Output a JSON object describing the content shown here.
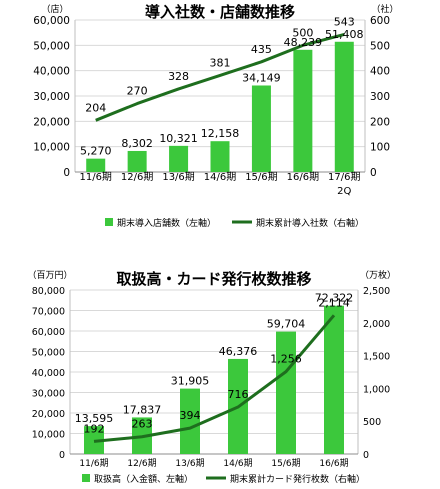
{
  "chart_data": [
    {
      "type": "bar",
      "title": "導入社数・店舗数推移",
      "y_left_unit": "（店）",
      "y_right_unit": "（社）",
      "categories": [
        "11/6期",
        "12/6期",
        "13/6期",
        "14/6期",
        "15/6期",
        "16/6期",
        "17/6期"
      ],
      "category_sublabels": [
        "",
        "",
        "",
        "",
        "",
        "",
        "2Q"
      ],
      "ylim_left": [
        0,
        60000
      ],
      "yticks_left": [
        "0",
        "10,000",
        "20,000",
        "30,000",
        "40,000",
        "50,000",
        "60,000"
      ],
      "ylim_right": [
        0,
        600
      ],
      "yticks_right": [
        "0",
        "100",
        "200",
        "300",
        "400",
        "500",
        "600"
      ],
      "bar_color": "#3cc83c",
      "line_color": "#1e6e1e",
      "grid": true,
      "legend_position": "bottom",
      "series": [
        {
          "name": "期末導入店舗数（左軸）",
          "kind": "bar",
          "axis": "left",
          "values": [
            5270,
            8302,
            10321,
            12158,
            34149,
            48239,
            51408
          ],
          "labels": [
            "5,270",
            "8,302",
            "10,321",
            "12,158",
            "34,149",
            "48,239",
            "51,408"
          ]
        },
        {
          "name": "期末累計導入社数（右軸）",
          "kind": "line",
          "axis": "right",
          "values": [
            204,
            270,
            328,
            381,
            435,
            500,
            543
          ],
          "labels": [
            "204",
            "270",
            "328",
            "381",
            "435",
            "500",
            "543"
          ]
        }
      ]
    },
    {
      "type": "bar",
      "title": "取扱高・カード発行枚数推移",
      "y_left_unit": "（百万円）",
      "y_right_unit": "（万枚）",
      "categories": [
        "11/6期",
        "12/6期",
        "13/6期",
        "14/6期",
        "15/6期",
        "16/6期"
      ],
      "category_sublabels": [
        "",
        "",
        "",
        "",
        "",
        ""
      ],
      "ylim_left": [
        0,
        80000
      ],
      "yticks_left": [
        "0",
        "10,000",
        "20,000",
        "30,000",
        "40,000",
        "50,000",
        "60,000",
        "70,000",
        "80,000"
      ],
      "ylim_right": [
        0,
        2500
      ],
      "yticks_right": [
        "0",
        "500",
        "1,000",
        "1,500",
        "2,000",
        "2,500"
      ],
      "bar_color": "#3cc83c",
      "line_color": "#1e6e1e",
      "grid": true,
      "legend_position": "bottom",
      "series": [
        {
          "name": "取扱高（入金額、左軸）",
          "kind": "bar",
          "axis": "left",
          "values": [
            13595,
            17837,
            31905,
            46376,
            59704,
            72322
          ],
          "labels": [
            "13,595",
            "17,837",
            "31,905",
            "46,376",
            "59,704",
            "72,322"
          ]
        },
        {
          "name": "期末累計カード発行枚数（右軸）",
          "kind": "line",
          "axis": "right",
          "values": [
            192,
            263,
            394,
            716,
            1256,
            2114
          ],
          "labels": [
            "192",
            "263",
            "394",
            "716",
            "1,256",
            "2,114"
          ]
        }
      ]
    }
  ]
}
